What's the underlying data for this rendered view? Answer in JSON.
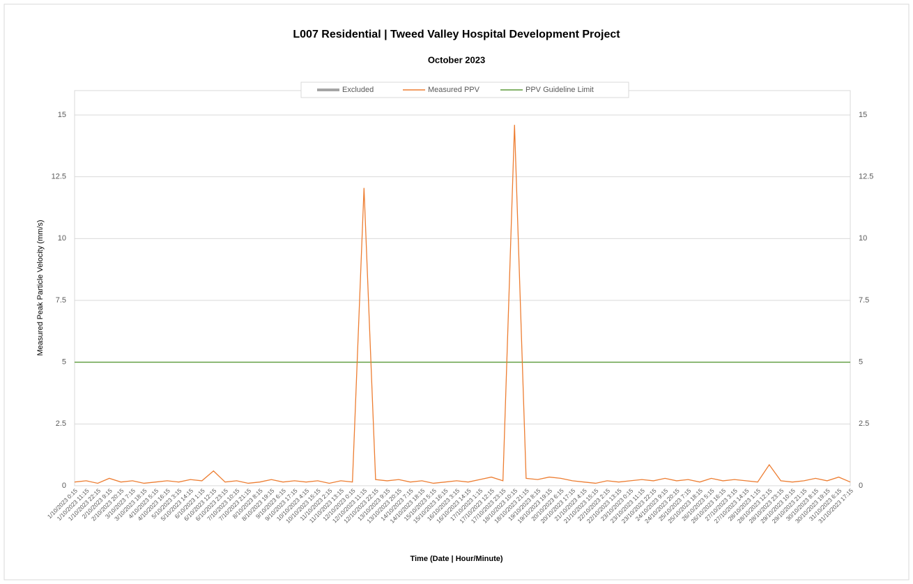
{
  "chart_data": {
    "type": "line",
    "title": "L007 Residential | Tweed Valley Hospital Development Project",
    "subtitle": "October 2023",
    "x_label": "Time  (Date | Hour/Minute)",
    "y_label": "Measured Peak Particle Velocity (mm/s)",
    "categories": [
      "1/10/2023 0:15",
      "1/10/2023 11:15",
      "1/10/2023 22:15",
      "2/10/2023 9:15",
      "2/10/2023 20:15",
      "3/10/2023 7:15",
      "3/10/2023 18:15",
      "4/10/2023 5:15",
      "4/10/2023 16:15",
      "5/10/2023 3:15",
      "5/10/2023 14:15",
      "6/10/2023 1:15",
      "6/10/2023 12:15",
      "6/10/2023 23:15",
      "7/10/2023 10:15",
      "7/10/2023 21:15",
      "8/10/2023 8:15",
      "8/10/2023 19:15",
      "9/10/2023 6:15",
      "9/10/2023 17:15",
      "10/10/2023 4:15",
      "10/10/2023 15:15",
      "11/10/2023 2:15",
      "11/10/2023 13:15",
      "12/10/2023 0:15",
      "12/10/2023 11:15",
      "12/10/2023 22:15",
      "13/10/2023 9:15",
      "13/10/2023 20:15",
      "14/10/2023 7:15",
      "14/10/2023 18:15",
      "15/10/2023 5:15",
      "15/10/2023 16:15",
      "16/10/2023 3:15",
      "16/10/2023 14:15",
      "17/10/2023 1:15",
      "17/10/2023 12:15",
      "17/10/2023 23:15",
      "18/10/2023 10:15",
      "18/10/2023 21:15",
      "19/10/2023 8:15",
      "19/10/2023 19:15",
      "20/10/2023 6:15",
      "20/10/2023 17:15",
      "21/10/2023 4:15",
      "21/10/2023 15:15",
      "22/10/2023 2:15",
      "22/10/2023 13:15",
      "23/10/2023 0:15",
      "23/10/2023 11:15",
      "23/10/2023 22:15",
      "24/10/2023 9:15",
      "24/10/2023 20:15",
      "25/10/2023 7:15",
      "25/10/2023 18:15",
      "26/10/2023 5:15",
      "26/10/2023 16:15",
      "27/10/2023 3:15",
      "27/10/2023 14:15",
      "28/10/2023 1:15",
      "28/10/2023 12:15",
      "28/10/2023 23:15",
      "29/10/2023 10:15",
      "29/10/2023 21:15",
      "30/10/2023 8:15",
      "30/10/2023 19:15",
      "31/10/2023 6:15",
      "31/10/2023 17:15"
    ],
    "series": [
      {
        "name": "Excluded",
        "color": "#a5a5a5",
        "values": [
          null,
          null,
          null,
          null,
          null,
          null,
          null,
          null,
          null,
          null,
          null,
          null,
          null,
          null,
          null,
          null,
          null,
          null,
          null,
          null,
          null,
          null,
          null,
          null,
          null,
          null,
          null,
          null,
          null,
          null,
          null,
          null,
          null,
          null,
          null,
          null,
          null,
          null,
          null,
          null,
          null,
          null,
          null,
          null,
          null,
          null,
          null,
          null,
          null,
          null,
          null,
          null,
          null,
          null,
          null,
          null,
          null,
          null,
          null,
          null,
          null,
          null,
          null,
          null,
          null,
          null,
          null,
          null
        ]
      },
      {
        "name": "Measured PPV",
        "color": "#ed7d31",
        "values": [
          0.15,
          0.2,
          0.1,
          0.3,
          0.15,
          0.2,
          0.1,
          0.15,
          0.2,
          0.15,
          0.25,
          0.2,
          0.6,
          0.15,
          0.2,
          0.1,
          0.15,
          0.25,
          0.15,
          0.2,
          0.15,
          0.2,
          0.1,
          0.2,
          0.15,
          12.05,
          0.25,
          0.2,
          0.25,
          0.15,
          0.2,
          0.1,
          0.15,
          0.2,
          0.15,
          0.25,
          0.35,
          0.2,
          14.6,
          0.3,
          0.25,
          0.35,
          0.3,
          0.2,
          0.15,
          0.1,
          0.2,
          0.15,
          0.2,
          0.25,
          0.2,
          0.3,
          0.2,
          0.25,
          0.15,
          0.3,
          0.2,
          0.25,
          0.2,
          0.15,
          0.85,
          0.2,
          0.15,
          0.2,
          0.3,
          0.2,
          0.35,
          0.15
        ]
      },
      {
        "name": "PPV Guideline Limit",
        "color": "#5b9a3a",
        "values": [
          5,
          5,
          5,
          5,
          5,
          5,
          5,
          5,
          5,
          5,
          5,
          5,
          5,
          5,
          5,
          5,
          5,
          5,
          5,
          5,
          5,
          5,
          5,
          5,
          5,
          5,
          5,
          5,
          5,
          5,
          5,
          5,
          5,
          5,
          5,
          5,
          5,
          5,
          5,
          5,
          5,
          5,
          5,
          5,
          5,
          5,
          5,
          5,
          5,
          5,
          5,
          5,
          5,
          5,
          5,
          5,
          5,
          5,
          5,
          5,
          5,
          5,
          5,
          5,
          5,
          5,
          5,
          5
        ]
      }
    ],
    "ylim": [
      0,
      15
    ],
    "yticks": [
      0,
      2.5,
      5,
      7.5,
      10,
      12.5,
      15
    ],
    "y2lim": [
      0,
      15
    ],
    "y2ticks": [
      0,
      2.5,
      5,
      7.5,
      10,
      12.5,
      15
    ],
    "grid": true,
    "legend": "top"
  }
}
